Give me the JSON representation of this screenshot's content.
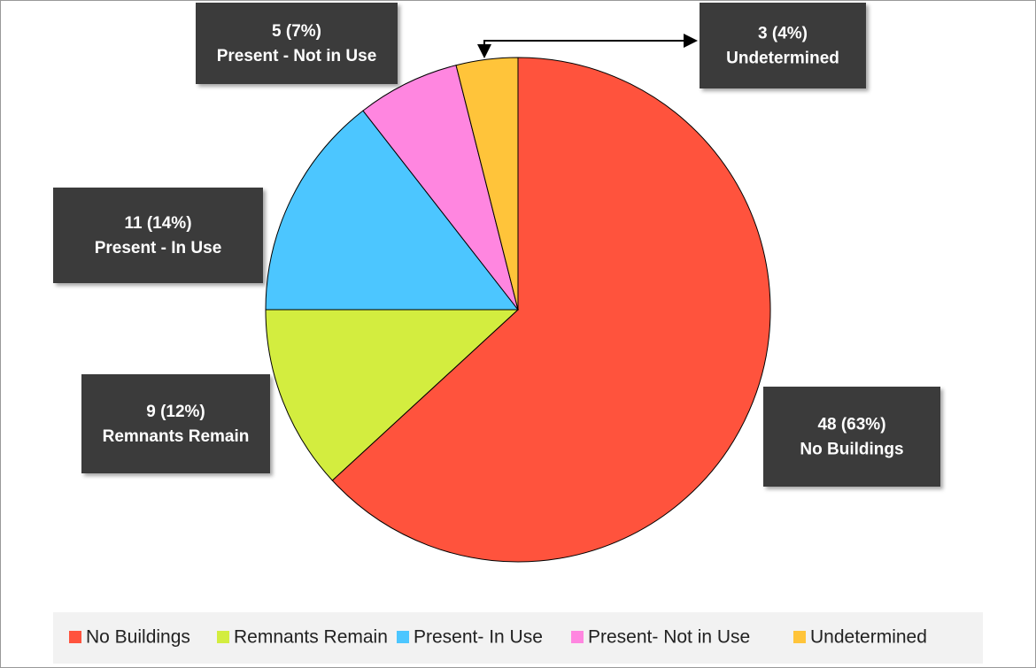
{
  "chart_data": {
    "type": "pie",
    "categories": [
      "No Buildings",
      "Remnants Remain",
      "Present- In Use",
      "Present- Not in Use",
      "Undetermined"
    ],
    "values": [
      48,
      9,
      11,
      5,
      3
    ],
    "value_labels": [
      "48 (63%)",
      "9 (12%)",
      "11 (14%)",
      "5 (7%)",
      "3 (4%)"
    ],
    "data_label_names": [
      "No Buildings",
      "Remnants Remain",
      "Present - In Use",
      "Present - Not in Use",
      "Undetermined"
    ],
    "colors": [
      "#ff533d",
      "#d3ed3f",
      "#4cc6ff",
      "#ff86e0",
      "#ffc43a"
    ]
  }
}
